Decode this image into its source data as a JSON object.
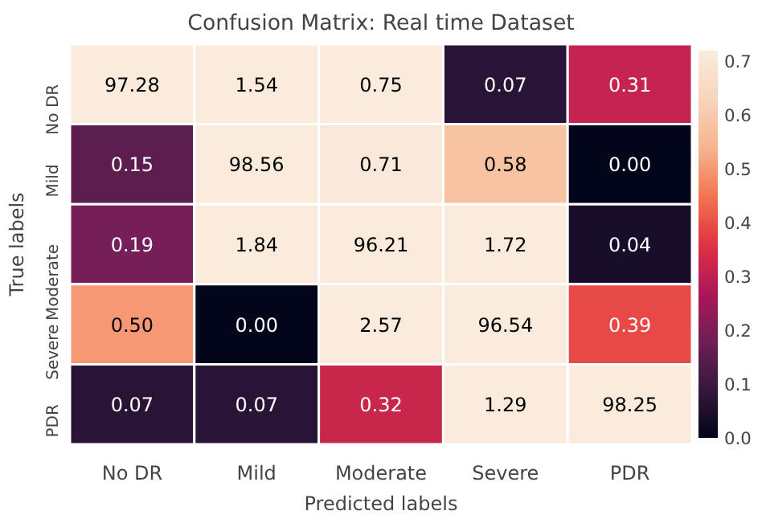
{
  "chart_data": {
    "type": "heatmap",
    "title": "Confusion Matrix: Real time Dataset",
    "xlabel": "Predicted labels",
    "ylabel": "True labels",
    "categories": [
      "No DR",
      "Mild",
      "Moderate",
      "Severe",
      "PDR"
    ],
    "y_categories": [
      "No DR",
      "Mild",
      "Moderate",
      "Severe",
      "PDR"
    ],
    "cells": [
      [
        97.28,
        1.54,
        0.75,
        0.07,
        0.31
      ],
      [
        0.15,
        98.56,
        0.71,
        0.58,
        0.0
      ],
      [
        0.19,
        1.84,
        96.21,
        1.72,
        0.04
      ],
      [
        0.5,
        0.0,
        2.57,
        96.54,
        0.39
      ],
      [
        0.07,
        0.07,
        0.32,
        1.29,
        98.25
      ]
    ],
    "cell_labels": [
      [
        "97.28",
        "1.54",
        "0.75",
        "0.07",
        "0.31"
      ],
      [
        "0.15",
        "98.56",
        "0.71",
        "0.58",
        "0.00"
      ],
      [
        "0.19",
        "1.84",
        "96.21",
        "1.72",
        "0.04"
      ],
      [
        "0.50",
        "0.00",
        "2.57",
        "96.54",
        "0.39"
      ],
      [
        "0.07",
        "0.07",
        "0.32",
        "1.29",
        "98.25"
      ]
    ],
    "data_labels": true,
    "clim": [
      0,
      0.72
    ],
    "cticks": [
      {
        "value": 0,
        "label": "0.0"
      },
      {
        "value": 0.1,
        "label": "0.1"
      },
      {
        "value": 0.2,
        "label": "0.2"
      },
      {
        "value": 0.3,
        "label": "0.3"
      },
      {
        "value": 0.4,
        "label": "0.4"
      },
      {
        "value": 0.5,
        "label": "0.5"
      },
      {
        "value": 0.6,
        "label": "0.6"
      },
      {
        "value": 0.7,
        "label": "0.7"
      }
    ]
  }
}
